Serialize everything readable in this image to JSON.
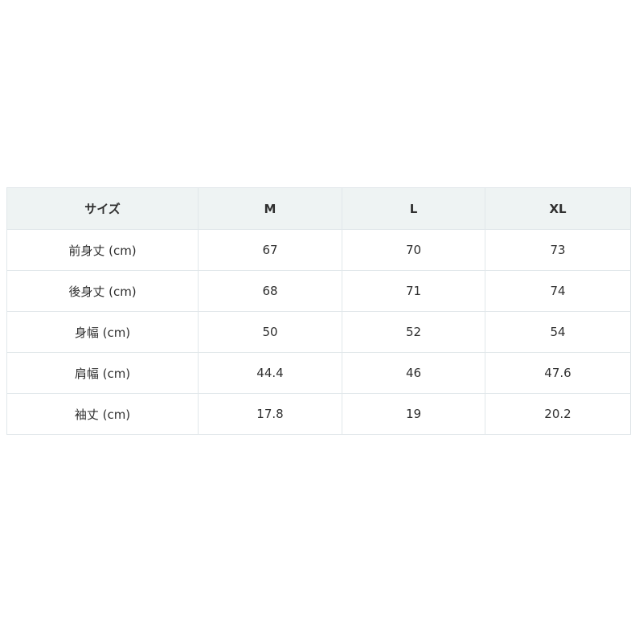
{
  "table": {
    "headers": [
      "サイズ",
      "M",
      "L",
      "XL"
    ],
    "rows": [
      [
        "前身丈 (cm)",
        "67",
        "70",
        "73"
      ],
      [
        "後身丈 (cm)",
        "68",
        "71",
        "74"
      ],
      [
        "身幅 (cm)",
        "50",
        "52",
        "54"
      ],
      [
        "肩幅 (cm)",
        "44.4",
        "46",
        "47.6"
      ],
      [
        "袖丈 (cm)",
        "17.8",
        "19",
        "20.2"
      ]
    ]
  },
  "colors": {
    "header_bg": "#eef3f3",
    "border": "#e1e7ea",
    "text": "#2f2f2f"
  }
}
